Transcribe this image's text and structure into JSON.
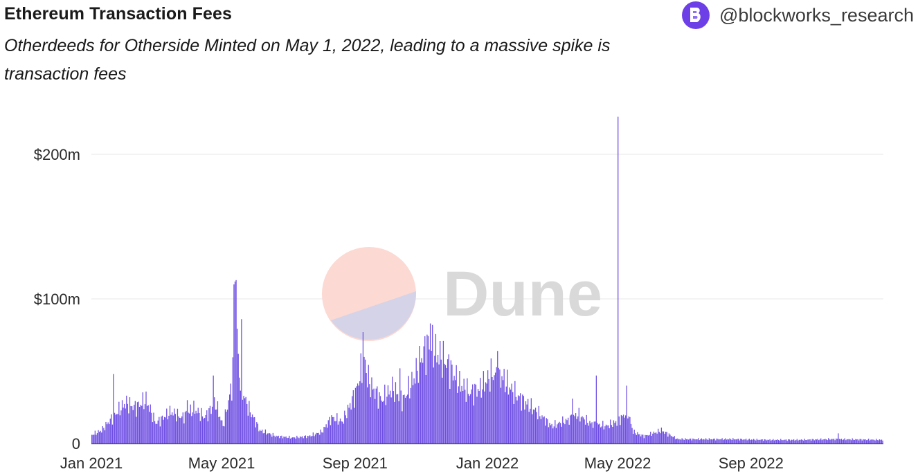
{
  "header": {
    "title": "Ethereum Transaction Fees",
    "subtitle": "Otherdeeds for Otherside Minted on May 1, 2022, leading to a massive spike is transaction fees",
    "brand_handle": "@blockworks_research",
    "brand_icon": "blockworks-logo-icon",
    "brand_color": "#6d3fe6"
  },
  "watermark": {
    "text": "Dune",
    "icon": "dune-logo-icon"
  },
  "chart_data": {
    "type": "bar",
    "title": "",
    "xlabel": "",
    "ylabel": "",
    "x_range": [
      "2021-01-01",
      "2022-12-31"
    ],
    "ylim": [
      0,
      230
    ],
    "unit": "millions USD",
    "grid": "horizontal",
    "bar_color": "#6f4fe3",
    "x_ticks": [
      {
        "date": "2021-01-01",
        "label": "Jan 2021"
      },
      {
        "date": "2021-05-01",
        "label": "May 2021"
      },
      {
        "date": "2021-09-01",
        "label": "Sep 2021"
      },
      {
        "date": "2022-01-01",
        "label": "Jan 2022"
      },
      {
        "date": "2022-05-01",
        "label": "May 2022"
      },
      {
        "date": "2022-09-01",
        "label": "Sep 2022"
      }
    ],
    "y_ticks": [
      {
        "value": 0,
        "label": "0"
      },
      {
        "value": 100,
        "label": "$100m"
      },
      {
        "value": 200,
        "label": "$200m"
      }
    ],
    "series_knots": [
      [
        "2021-01-01",
        6
      ],
      [
        "2021-01-10",
        9
      ],
      [
        "2021-01-20",
        18
      ],
      [
        "2021-02-01",
        28
      ],
      [
        "2021-02-10",
        25
      ],
      [
        "2021-02-20",
        30
      ],
      [
        "2021-03-01",
        14
      ],
      [
        "2021-03-15",
        22
      ],
      [
        "2021-03-25",
        18
      ],
      [
        "2021-04-05",
        24
      ],
      [
        "2021-04-15",
        18
      ],
      [
        "2021-04-25",
        28
      ],
      [
        "2021-05-02",
        12
      ],
      [
        "2021-05-10",
        40
      ],
      [
        "2021-05-14",
        95
      ],
      [
        "2021-05-18",
        40
      ],
      [
        "2021-05-25",
        25
      ],
      [
        "2021-06-05",
        9
      ],
      [
        "2021-06-20",
        5
      ],
      [
        "2021-07-05",
        4
      ],
      [
        "2021-07-20",
        5
      ],
      [
        "2021-08-01",
        8
      ],
      [
        "2021-08-10",
        18
      ],
      [
        "2021-08-20",
        15
      ],
      [
        "2021-09-01",
        35
      ],
      [
        "2021-09-08",
        55
      ],
      [
        "2021-09-15",
        40
      ],
      [
        "2021-09-25",
        30
      ],
      [
        "2021-10-05",
        38
      ],
      [
        "2021-10-15",
        30
      ],
      [
        "2021-10-25",
        45
      ],
      [
        "2021-11-01",
        60
      ],
      [
        "2021-11-08",
        70
      ],
      [
        "2021-11-15",
        62
      ],
      [
        "2021-11-25",
        55
      ],
      [
        "2021-12-05",
        42
      ],
      [
        "2021-12-15",
        35
      ],
      [
        "2021-12-25",
        38
      ],
      [
        "2022-01-05",
        48
      ],
      [
        "2022-01-15",
        45
      ],
      [
        "2022-01-25",
        35
      ],
      [
        "2022-02-05",
        28
      ],
      [
        "2022-02-15",
        22
      ],
      [
        "2022-03-01",
        12
      ],
      [
        "2022-03-15",
        16
      ],
      [
        "2022-03-25",
        20
      ],
      [
        "2022-04-05",
        14
      ],
      [
        "2022-04-20",
        12
      ],
      [
        "2022-04-30",
        15
      ],
      [
        "2022-05-10",
        22
      ],
      [
        "2022-05-15",
        8
      ],
      [
        "2022-05-25",
        5
      ],
      [
        "2022-06-10",
        9
      ],
      [
        "2022-06-25",
        3
      ],
      [
        "2022-07-15",
        3
      ],
      [
        "2022-08-15",
        3
      ],
      [
        "2022-09-15",
        2.5
      ],
      [
        "2022-10-15",
        2.5
      ],
      [
        "2022-11-15",
        3
      ],
      [
        "2022-12-31",
        2.5
      ]
    ],
    "spikes": [
      [
        "2021-01-21",
        48
      ],
      [
        "2021-02-05",
        32
      ],
      [
        "2021-03-30",
        30
      ],
      [
        "2021-04-23",
        47
      ],
      [
        "2021-05-12",
        110
      ],
      [
        "2021-05-13",
        112
      ],
      [
        "2021-05-14",
        113
      ],
      [
        "2021-05-16",
        62
      ],
      [
        "2021-05-19",
        86
      ],
      [
        "2021-09-08",
        77
      ],
      [
        "2021-09-10",
        58
      ],
      [
        "2021-10-12",
        52
      ],
      [
        "2021-11-09",
        83
      ],
      [
        "2022-01-10",
        64
      ],
      [
        "2022-03-20",
        31
      ],
      [
        "2022-04-11",
        47
      ],
      [
        "2022-05-01",
        226
      ],
      [
        "2022-05-09",
        40
      ],
      [
        "2022-06-10",
        11
      ],
      [
        "2022-11-20",
        7
      ]
    ]
  }
}
